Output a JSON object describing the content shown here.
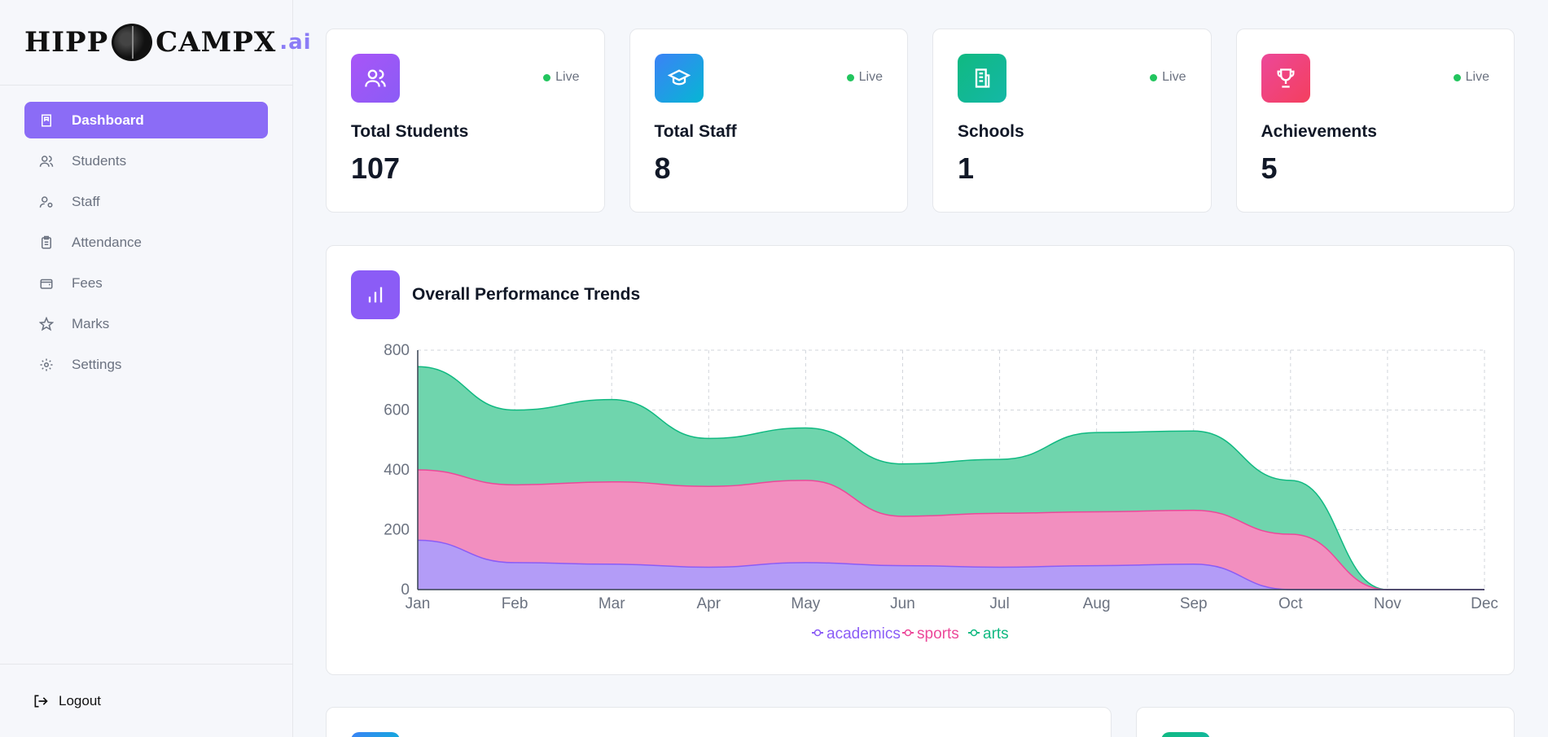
{
  "brand": {
    "name_left": "HIPP",
    "name_right": "CAMPX",
    "suffix": ".ai"
  },
  "sidebar": {
    "items": [
      {
        "label": "Dashboard",
        "icon": "book-icon",
        "active": true
      },
      {
        "label": "Students",
        "icon": "users-icon"
      },
      {
        "label": "Staff",
        "icon": "user-cog-icon"
      },
      {
        "label": "Attendance",
        "icon": "clipboard-icon"
      },
      {
        "label": "Fees",
        "icon": "wallet-icon"
      },
      {
        "label": "Marks",
        "icon": "star-icon"
      },
      {
        "label": "Settings",
        "icon": "gear-icon"
      }
    ],
    "logout_label": "Logout"
  },
  "stats": [
    {
      "label": "Total Students",
      "value": "107",
      "status": "Live",
      "icon": "users-icon",
      "color": "#8b5cf6"
    },
    {
      "label": "Total Staff",
      "value": "8",
      "status": "Live",
      "icon": "graduation-cap-icon",
      "color": "#3b82f6"
    },
    {
      "label": "Schools",
      "value": "1",
      "status": "Live",
      "icon": "building-icon",
      "color": "#10b981"
    },
    {
      "label": "Achievements",
      "value": "5",
      "status": "Live",
      "icon": "trophy-icon",
      "color": "#ec4899"
    }
  ],
  "chart_title": "Overall Performance Trends",
  "chart_data": {
    "type": "area",
    "stacked": true,
    "title": "Overall Performance Trends",
    "categories": [
      "Jan",
      "Feb",
      "Mar",
      "Apr",
      "May",
      "Jun",
      "Jul",
      "Aug",
      "Sep",
      "Oct",
      "Nov",
      "Dec"
    ],
    "series": [
      {
        "name": "academics",
        "color": "#8b5cf6",
        "values": [
          165,
          90,
          85,
          75,
          90,
          80,
          75,
          80,
          85,
          0,
          0,
          0
        ]
      },
      {
        "name": "sports",
        "color": "#ec4899",
        "values": [
          235,
          260,
          275,
          270,
          275,
          165,
          180,
          180,
          180,
          185,
          0,
          0
        ]
      },
      {
        "name": "arts",
        "color": "#10b981",
        "values": [
          345,
          250,
          275,
          160,
          175,
          175,
          180,
          265,
          265,
          180,
          0,
          0
        ]
      }
    ],
    "ylim": [
      0,
      800
    ],
    "yticks": [
      0,
      200,
      400,
      600,
      800
    ],
    "legend": "bottom",
    "grid": true
  }
}
